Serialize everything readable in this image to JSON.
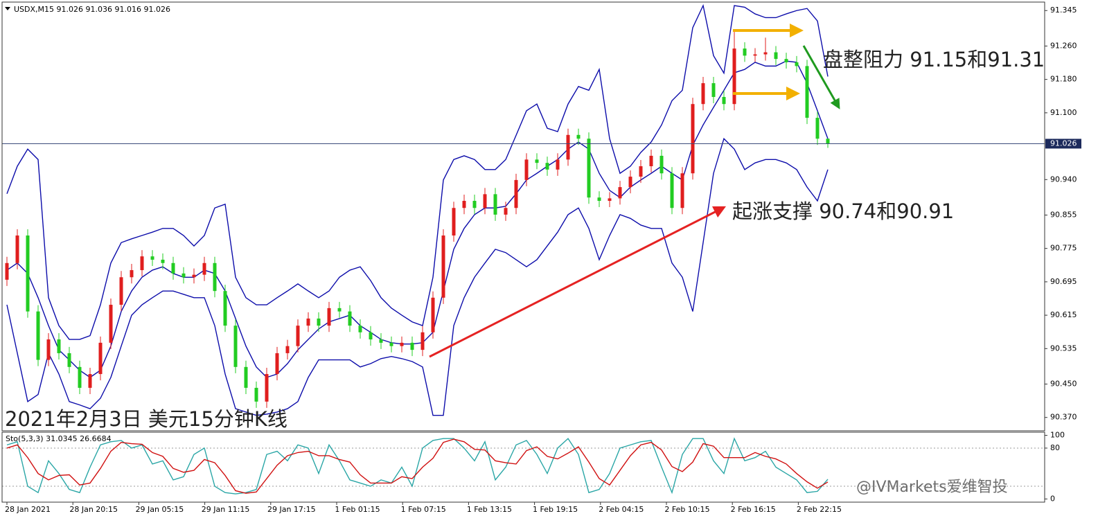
{
  "chart_data": [
    {
      "type": "candlestick",
      "title": "USDX,M15  91.026 91.036 91.016 91.026",
      "open": [
        90.7,
        90.74,
        90.806,
        90.624,
        90.508,
        90.557,
        90.524,
        90.491,
        90.441,
        90.474,
        90.549,
        90.64,
        90.706,
        90.723,
        90.756,
        90.748,
        90.74,
        90.715,
        90.706,
        90.712,
        90.74,
        90.673,
        90.59,
        90.491,
        90.441,
        90.408,
        90.474,
        90.524,
        90.541,
        90.59,
        90.607,
        90.59,
        90.632,
        90.624,
        90.59,
        90.574,
        90.557,
        90.549,
        90.541,
        90.549,
        90.532,
        90.574,
        90.657,
        90.806,
        90.872,
        90.889,
        90.872,
        90.905,
        90.856,
        90.872,
        90.939,
        90.988,
        90.98,
        90.964,
        90.988,
        91.047,
        91.038,
        90.897,
        90.889,
        90.895,
        90.922,
        90.947,
        90.972,
        90.997,
        90.955,
        90.872,
        90.955,
        91.121,
        91.171,
        91.138,
        91.121,
        91.254,
        91.237,
        91.24,
        91.245,
        91.229,
        91.221,
        91.212,
        91.088,
        91.038
      ],
      "high": [
        90.755,
        90.821,
        90.821,
        90.639,
        90.572,
        90.572,
        90.539,
        90.506,
        90.489,
        90.564,
        90.655,
        90.721,
        90.738,
        90.771,
        90.771,
        90.763,
        90.755,
        90.73,
        90.727,
        90.755,
        90.755,
        90.688,
        90.605,
        90.506,
        90.456,
        90.489,
        90.539,
        90.556,
        90.605,
        90.622,
        90.622,
        90.647,
        90.647,
        90.639,
        90.605,
        90.589,
        90.572,
        90.564,
        90.564,
        90.564,
        90.589,
        90.672,
        90.821,
        90.887,
        90.904,
        90.904,
        90.92,
        90.92,
        90.887,
        90.954,
        91.003,
        91.003,
        90.995,
        91.003,
        91.062,
        91.062,
        91.053,
        90.912,
        90.91,
        90.937,
        90.962,
        90.987,
        91.012,
        91.012,
        90.97,
        90.97,
        91.136,
        91.186,
        91.186,
        91.153,
        91.3,
        91.269,
        91.255,
        91.28,
        91.26,
        91.244,
        91.236,
        91.227,
        91.103,
        91.036
      ],
      "low": [
        90.685,
        90.725,
        90.609,
        90.493,
        90.493,
        90.509,
        90.476,
        90.426,
        90.426,
        90.459,
        90.534,
        90.625,
        90.691,
        90.708,
        90.733,
        90.725,
        90.7,
        90.691,
        90.691,
        90.697,
        90.658,
        90.575,
        90.476,
        90.426,
        90.393,
        90.393,
        90.459,
        90.509,
        90.526,
        90.575,
        90.575,
        90.575,
        90.609,
        90.575,
        90.559,
        90.542,
        90.534,
        90.526,
        90.526,
        90.517,
        90.517,
        90.559,
        90.642,
        90.791,
        90.857,
        90.857,
        90.857,
        90.841,
        90.841,
        90.857,
        90.924,
        90.965,
        90.949,
        90.949,
        90.973,
        91.023,
        90.882,
        90.874,
        90.874,
        90.88,
        90.907,
        90.932,
        90.957,
        90.94,
        90.857,
        90.857,
        90.94,
        91.106,
        91.123,
        91.106,
        91.106,
        91.222,
        91.222,
        91.225,
        91.214,
        91.206,
        91.197,
        91.073,
        91.023,
        91.016
      ],
      "close": [
        90.74,
        90.806,
        90.624,
        90.508,
        90.557,
        90.524,
        90.491,
        90.441,
        90.474,
        90.549,
        90.64,
        90.706,
        90.723,
        90.756,
        90.748,
        90.74,
        90.715,
        90.706,
        90.712,
        90.74,
        90.673,
        90.59,
        90.491,
        90.441,
        90.408,
        90.474,
        90.524,
        90.541,
        90.59,
        90.607,
        90.59,
        90.632,
        90.624,
        90.59,
        90.574,
        90.557,
        90.549,
        90.541,
        90.549,
        90.532,
        90.574,
        90.657,
        90.806,
        90.872,
        90.889,
        90.872,
        90.905,
        90.856,
        90.872,
        90.939,
        90.988,
        90.98,
        90.964,
        90.988,
        91.047,
        91.038,
        90.897,
        90.889,
        90.895,
        90.922,
        90.947,
        90.972,
        90.997,
        90.955,
        90.872,
        90.955,
        91.121,
        91.171,
        91.138,
        91.121,
        91.254,
        91.237,
        91.24,
        91.245,
        91.229,
        91.221,
        91.212,
        91.088,
        91.038,
        91.026
      ],
      "up_color": "#e01e1e",
      "down_color": "#22cc22",
      "series": [
        {
          "color": "#0c0caa",
          "values": [
            90.906,
            90.972,
            91.013,
            90.988,
            90.657,
            90.59,
            90.557,
            90.557,
            90.566,
            90.64,
            90.74,
            90.789,
            90.798,
            90.806,
            90.814,
            90.823,
            90.823,
            90.806,
            90.781,
            90.806,
            90.872,
            90.881,
            90.706,
            90.657,
            90.64,
            90.64,
            90.657,
            90.673,
            90.69,
            90.673,
            90.657,
            90.673,
            90.706,
            90.723,
            90.731,
            90.698,
            90.657,
            90.632,
            90.615,
            90.599,
            90.59,
            90.706,
            90.939,
            90.988,
            90.997,
            90.988,
            90.964,
            90.964,
            90.988,
            91.046,
            91.105,
            91.121,
            91.063,
            91.055,
            91.121,
            91.163,
            91.154,
            91.204,
            91.038,
            90.955,
            90.972,
            91.005,
            91.03,
            91.071,
            91.129,
            91.154,
            91.304,
            91.357,
            91.237,
            91.195,
            91.357,
            91.353,
            91.337,
            91.328,
            91.328,
            91.337,
            91.345,
            91.35,
            91.32,
            91.187
          ]
        },
        {
          "color": "#0c0caa",
          "values": [
            90.723,
            90.74,
            90.715,
            90.657,
            90.59,
            90.532,
            90.508,
            90.483,
            90.466,
            90.483,
            90.541,
            90.624,
            90.673,
            90.706,
            90.723,
            90.731,
            90.715,
            90.706,
            90.706,
            90.723,
            90.715,
            90.673,
            90.607,
            90.541,
            90.491,
            90.466,
            90.474,
            90.499,
            90.532,
            90.557,
            90.582,
            90.599,
            90.607,
            90.615,
            90.59,
            90.574,
            90.557,
            90.549,
            90.546,
            90.546,
            90.549,
            90.574,
            90.673,
            90.773,
            90.823,
            90.856,
            90.872,
            90.872,
            90.876,
            90.906,
            90.939,
            90.955,
            90.972,
            90.988,
            91.013,
            91.03,
            91.013,
            90.955,
            90.914,
            90.897,
            90.922,
            90.939,
            90.955,
            90.972,
            90.955,
            90.939,
            91.022,
            91.071,
            91.113,
            91.154,
            91.196,
            91.204,
            91.221,
            91.212,
            91.212,
            91.224,
            91.221,
            91.171,
            91.105,
            91.038
          ]
        },
        {
          "color": "#0c0caa",
          "values": [
            90.64,
            90.524,
            90.408,
            90.425,
            90.524,
            90.474,
            90.408,
            90.4,
            90.391,
            90.416,
            90.466,
            90.541,
            90.615,
            90.64,
            90.657,
            90.673,
            90.673,
            90.665,
            90.657,
            90.657,
            90.59,
            90.474,
            90.391,
            90.383,
            90.375,
            90.378,
            90.383,
            90.391,
            90.408,
            90.466,
            90.508,
            90.508,
            90.508,
            90.508,
            90.491,
            90.499,
            90.511,
            90.516,
            90.511,
            90.504,
            90.491,
            90.375,
            90.375,
            90.59,
            90.657,
            90.706,
            90.74,
            90.773,
            90.765,
            90.748,
            90.731,
            90.748,
            90.781,
            90.814,
            90.856,
            90.872,
            90.823,
            90.748,
            90.806,
            90.856,
            90.847,
            90.831,
            90.823,
            90.823,
            90.74,
            90.706,
            90.624,
            90.789,
            90.955,
            91.038,
            91.013,
            90.964,
            90.98,
            90.988,
            90.988,
            90.98,
            90.964,
            90.922,
            90.889,
            90.964
          ]
        }
      ],
      "last_price": 91.026,
      "ylim": [
        90.338,
        91.362
      ],
      "yticks": [
        91.345,
        {
          "value": 91.26,
          "label": "91.260"
        },
        {
          "value": 91.18,
          "label": "91.180"
        },
        {
          "value": 91.1,
          "label": "91.100"
        },
        {
          "value": 90.94,
          "label": "90.940"
        },
        90.855,
        90.775,
        90.695,
        90.615,
        90.535,
        {
          "value": 90.45,
          "label": "90.450"
        },
        {
          "value": 90.37,
          "label": "90.370"
        }
      ],
      "xtick_labels": [
        "28 Jan 2021",
        "28 Jan 20:15",
        "29 Jan 05:15",
        "29 Jan 11:15",
        "29 Jan 17:15",
        "1 Feb 01:15",
        "1 Feb 07:15",
        "1 Feb 13:15",
        "1 Feb 19:15",
        "2 Feb 04:15",
        "2 Feb 10:15",
        "2 Feb 16:15",
        "2 Feb 22:15"
      ],
      "annotations": [
        "盘整阻力 91.15和91.31",
        "起涨支撑 90.74和90.91",
        "2021年2月3日 美元15分钟K线"
      ],
      "watermark": "@IVMarkets爱维智投"
    },
    {
      "type": "stochastic",
      "title": "Sto(5,3,3) 31.0345 26.6684",
      "series": [
        {
          "color": "#2aa6a6",
          "values": [
            85,
            90,
            20,
            10,
            60,
            40,
            15,
            10,
            50,
            85,
            90,
            92,
            80,
            85,
            55,
            60,
            30,
            35,
            70,
            80,
            20,
            10,
            8,
            10,
            15,
            70,
            75,
            60,
            85,
            80,
            40,
            85,
            60,
            30,
            25,
            20,
            30,
            25,
            50,
            20,
            80,
            92,
            95,
            95,
            80,
            60,
            90,
            30,
            50,
            85,
            92,
            70,
            40,
            80,
            95,
            70,
            10,
            15,
            40,
            80,
            85,
            90,
            92,
            50,
            10,
            70,
            95,
            95,
            60,
            40,
            95,
            60,
            65,
            75,
            50,
            40,
            30,
            10,
            12,
            31.0345
          ]
        },
        {
          "color": "#d01010",
          "values": [
            80,
            85,
            65,
            40,
            30,
            37,
            38,
            22,
            25,
            48,
            75,
            89,
            87,
            86,
            73,
            67,
            48,
            42,
            45,
            62,
            57,
            37,
            13,
            9,
            11,
            32,
            53,
            68,
            73,
            75,
            68,
            68,
            62,
            58,
            38,
            25,
            25,
            25,
            35,
            32,
            50,
            64,
            89,
            94,
            90,
            78,
            77,
            60,
            57,
            55,
            76,
            82,
            67,
            63,
            72,
            82,
            58,
            32,
            22,
            45,
            68,
            85,
            89,
            77,
            51,
            43,
            58,
            87,
            83,
            65,
            65,
            65,
            73,
            67,
            63,
            55,
            40,
            27,
            17,
            26.6684
          ]
        }
      ],
      "ylim": [
        -5,
        105
      ],
      "yticks": [
        100,
        80,
        0
      ],
      "levels": [
        80,
        20
      ]
    }
  ]
}
